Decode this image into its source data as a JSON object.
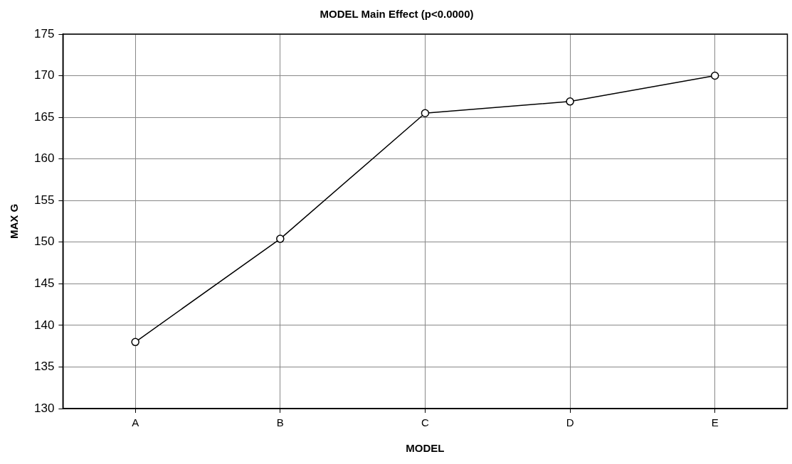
{
  "chart_data": {
    "type": "line",
    "title": "MODEL Main Effect (p<0.0000)",
    "xlabel": "MODEL",
    "ylabel": "MAX G",
    "categories": [
      "A",
      "B",
      "C",
      "D",
      "E"
    ],
    "series": [
      {
        "color": "#000000",
        "values": [
          138.0,
          150.4,
          165.5,
          166.9,
          170.0
        ]
      }
    ],
    "ylim": [
      130,
      175
    ],
    "yticks": [
      130,
      135,
      140,
      145,
      150,
      155,
      160,
      165,
      170,
      175
    ],
    "grid": true,
    "legend": false,
    "marker": "circle",
    "line_style": "solid"
  }
}
